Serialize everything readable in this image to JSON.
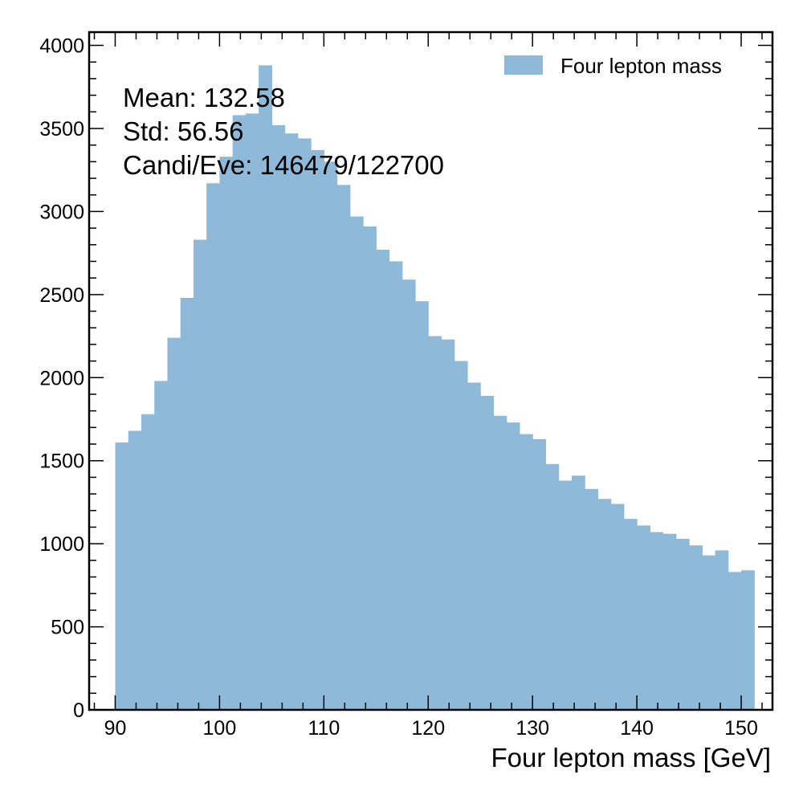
{
  "chart_data": {
    "type": "bar",
    "bin_start": 90,
    "bin_width": 1.25,
    "values": [
      1610,
      1680,
      1780,
      1980,
      2240,
      2480,
      2830,
      3170,
      3330,
      3580,
      3590,
      3880,
      3520,
      3470,
      3440,
      3370,
      3300,
      3160,
      2970,
      2910,
      2770,
      2700,
      2590,
      2460,
      2250,
      2230,
      2100,
      1970,
      1890,
      1770,
      1730,
      1660,
      1630,
      1480,
      1380,
      1410,
      1330,
      1270,
      1240,
      1150,
      1110,
      1070,
      1060,
      1030,
      990,
      930,
      960,
      830,
      840
    ],
    "xlabel": "Four lepton mass [GeV]",
    "ylabel": "",
    "xlim": [
      87.5,
      153
    ],
    "ylim": [
      0,
      4080
    ],
    "xticks": [
      90,
      100,
      110,
      120,
      130,
      140,
      150
    ],
    "yticks": [
      0,
      500,
      1000,
      1500,
      2000,
      2500,
      3000,
      3500,
      4000
    ],
    "bar_color": "#8fb9d8",
    "legend": {
      "label": "Four lepton mass",
      "placement": "top-right"
    },
    "annotations": [
      "Mean: 132.58",
      "Std: 56.56",
      "Candi/Eve: 146479/122700"
    ]
  }
}
